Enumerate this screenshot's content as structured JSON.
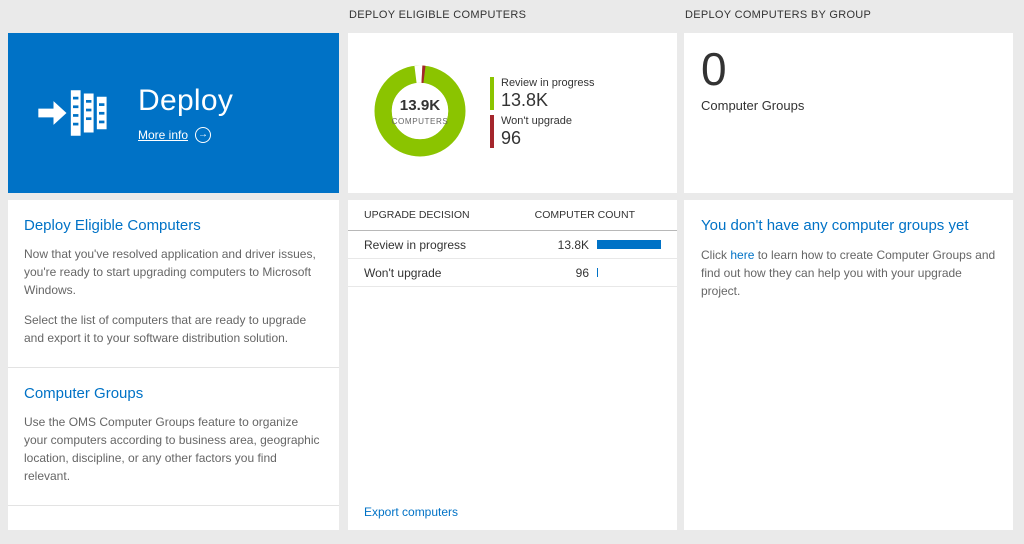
{
  "colors": {
    "background": "#eaeaea",
    "accent_blue": "#0072c6",
    "green": "#8bc400",
    "red": "#a4262c",
    "text_dark": "#333333",
    "text_gray": "#666666"
  },
  "left": {
    "tile": {
      "title": "Deploy",
      "more_info": "More info",
      "arrow_glyph": "→"
    },
    "sections": [
      {
        "heading": "Deploy Eligible Computers",
        "p1": "Now that you've resolved application and driver issues, you're ready to start upgrading computers to Microsoft Windows.",
        "p2": "Select the list of computers that are ready to upgrade and export it to your software distribution solution."
      },
      {
        "heading": "Computer Groups",
        "p1": "Use the OMS Computer Groups feature to organize your computers according to business area, geographic location, discipline, or any other factors you find relevant."
      }
    ]
  },
  "middle": {
    "header": "DEPLOY ELIGIBLE COMPUTERS",
    "donut": {
      "center_value": "13.9K",
      "center_label": "COMPUTERS"
    },
    "legend": [
      {
        "label": "Review in progress",
        "value": "13.8K",
        "color": "#8bc400"
      },
      {
        "label": "Won't upgrade",
        "value": "96",
        "color": "#a4262c"
      }
    ],
    "table": {
      "col1": "UPGRADE DECISION",
      "col2": "COMPUTER COUNT",
      "rows": [
        {
          "label": "Review in progress",
          "value": "13.8K",
          "bar_pct": 100
        },
        {
          "label": "Won't upgrade",
          "value": "96",
          "bar_pct": 2
        }
      ]
    },
    "export_link": "Export computers"
  },
  "right": {
    "header": "DEPLOY COMPUTERS BY GROUP",
    "count": "0",
    "count_label": "Computer Groups",
    "empty": {
      "heading": "You don't have any computer groups yet",
      "before": "Click ",
      "link": "here",
      "after": " to learn how to create Computer Groups and find out how they can help you with your upgrade project."
    }
  },
  "chart_data": {
    "type": "pie",
    "title": "Deploy Eligible Computers",
    "center_value": "13.9K",
    "center_label": "COMPUTERS",
    "slices": [
      {
        "label": "Review in progress",
        "value": 13800,
        "display": "13.8K",
        "color": "#8bc400"
      },
      {
        "label": "Won't upgrade",
        "value": 96,
        "display": "96",
        "color": "#a4262c"
      }
    ],
    "legend_position": "right"
  }
}
